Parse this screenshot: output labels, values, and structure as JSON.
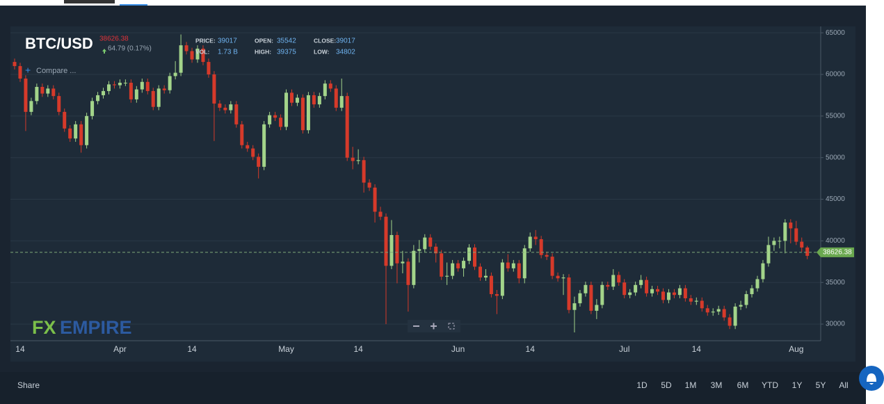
{
  "chart_data": {
    "type": "candlestick",
    "title": "BTC/USD",
    "last_price": 38626.38,
    "change": "64.79 (0.17%)",
    "compare": "Compare ...",
    "stats": [
      {
        "label": "PRICE:",
        "value": 39017
      },
      {
        "label": "OPEN:",
        "value": 35542
      },
      {
        "label": "CLOSE:",
        "value": 39017
      },
      {
        "label": "VOL:",
        "value": "1.73 B"
      },
      {
        "label": "HIGH:",
        "value": 39375
      },
      {
        "label": "LOW:",
        "value": 34802
      }
    ],
    "logo": [
      "FX",
      "EMPIRE"
    ],
    "share": "Share",
    "ranges": [
      "1D",
      "5D",
      "1M",
      "3M",
      "6M",
      "YTD",
      "1Y",
      "5Y",
      "All"
    ],
    "up_color": "#a3d48a",
    "down_color": "#d63a2a",
    "ylim": [
      28000,
      65600
    ],
    "yticks": [
      30000,
      35000,
      40000,
      45000,
      50000,
      55000,
      60000,
      65000
    ],
    "grid": true,
    "categories": [
      null,
      "14",
      null,
      null,
      null,
      null,
      null,
      null,
      null,
      null,
      null,
      null,
      null,
      null,
      null,
      null,
      null,
      null,
      null,
      "Apr",
      null,
      null,
      null,
      null,
      null,
      null,
      null,
      null,
      null,
      null,
      null,
      null,
      "14",
      null,
      null,
      null,
      null,
      null,
      null,
      null,
      null,
      null,
      null,
      null,
      null,
      null,
      null,
      null,
      null,
      "May",
      null,
      null,
      null,
      null,
      null,
      null,
      null,
      null,
      null,
      null,
      null,
      null,
      "14",
      null,
      null,
      null,
      null,
      null,
      null,
      null,
      null,
      null,
      null,
      null,
      null,
      null,
      null,
      null,
      null,
      null,
      "Jun",
      null,
      null,
      null,
      null,
      null,
      null,
      null,
      null,
      null,
      null,
      null,
      null,
      "14",
      null,
      null,
      null,
      null,
      null,
      null,
      null,
      null,
      null,
      null,
      null,
      null,
      null,
      null,
      null,
      null,
      "Jul",
      null,
      null,
      null,
      null,
      null,
      null,
      null,
      null,
      null,
      null,
      null,
      null,
      "14",
      null,
      null,
      null,
      null,
      null,
      null,
      null,
      null,
      null,
      null,
      null,
      null,
      null,
      null,
      null,
      null,
      null,
      "Aug",
      null,
      null
    ],
    "open": [
      61500,
      61000,
      59500,
      55500,
      56800,
      58500,
      57700,
      58300,
      57400,
      55500,
      53500,
      52300,
      54000,
      51500,
      55000,
      56800,
      57500,
      58000,
      58800,
      58700,
      59000,
      59000,
      57000,
      58200,
      59100,
      58000,
      56100,
      58300,
      58100,
      59800,
      60200,
      63500,
      62800,
      61800,
      63100,
      61500,
      60000,
      56500,
      56000,
      55700,
      56400,
      54000,
      51500,
      51100,
      50100,
      48900,
      54000,
      55100,
      54800,
      53700,
      57800,
      56600,
      57200,
      53300,
      57500,
      56400,
      57400,
      58900,
      58300,
      56000,
      57400,
      50000,
      49600,
      49700,
      47000,
      46400,
      43500,
      42900,
      37000,
      40700,
      37300,
      37500,
      34700,
      38800,
      39000,
      40400,
      39300,
      38500,
      35700,
      35800,
      37300,
      36700,
      37600,
      39200,
      36900,
      35600,
      35800,
      33600,
      33400,
      37400,
      36700,
      37300,
      35500,
      39100,
      40500,
      40200,
      38300,
      38100,
      35800,
      35500,
      35600,
      31700,
      32500,
      33700,
      34700,
      31600,
      32300,
      34700,
      34500,
      35900,
      35000,
      33500,
      33800,
      34700,
      35300,
      33700,
      34200,
      33900,
      32900,
      33800,
      33500,
      34300,
      33100,
      32700,
      32800,
      31900,
      31400,
      31500,
      31800,
      30800,
      29800,
      32100,
      32300,
      33600,
      34300,
      35400,
      37300,
      39500,
      40000,
      40000,
      42200,
      41500,
      39900,
      39200
    ],
    "high": [
      61900,
      61400,
      59900,
      57200,
      58900,
      58900,
      58700,
      58700,
      57800,
      55900,
      53900,
      54400,
      54400,
      55400,
      57200,
      57900,
      58400,
      59200,
      59200,
      59400,
      59400,
      59400,
      58600,
      59500,
      59500,
      58400,
      58700,
      58700,
      60200,
      61600,
      64800,
      63900,
      63200,
      63500,
      63500,
      61900,
      60400,
      56900,
      56400,
      56800,
      56800,
      54400,
      51900,
      51500,
      50500,
      54400,
      55500,
      55500,
      55200,
      58200,
      58200,
      57600,
      57600,
      57900,
      57900,
      57800,
      59300,
      59300,
      58700,
      59500,
      57800,
      51300,
      51000,
      50100,
      47400,
      46800,
      44100,
      43300,
      42500,
      41100,
      38800,
      37900,
      39500,
      40100,
      40800,
      40800,
      39700,
      38900,
      37400,
      37700,
      37700,
      38000,
      39600,
      39600,
      37300,
      36600,
      36200,
      34100,
      37800,
      38400,
      37700,
      37700,
      39500,
      41000,
      41300,
      40600,
      38700,
      38500,
      36200,
      36000,
      36000,
      33300,
      34100,
      35100,
      35100,
      33000,
      35100,
      35100,
      36600,
      36300,
      35400,
      34200,
      35100,
      35900,
      35700,
      34600,
      34600,
      34300,
      34200,
      34200,
      34700,
      34700,
      33500,
      33200,
      33200,
      32300,
      31900,
      32200,
      32200,
      31200,
      32500,
      32800,
      34000,
      34700,
      35800,
      37700,
      40500,
      40400,
      40500,
      42600,
      42600,
      42400,
      40400,
      39400
    ],
    "low": [
      60600,
      59100,
      53200,
      55100,
      56400,
      57300,
      57300,
      57000,
      55100,
      53100,
      51900,
      51900,
      50600,
      51100,
      54600,
      56400,
      57100,
      57600,
      58300,
      58300,
      58600,
      56600,
      56600,
      57800,
      57600,
      55700,
      55700,
      57700,
      57700,
      59400,
      59800,
      62400,
      61400,
      61400,
      61100,
      59600,
      52000,
      55600,
      55300,
      55300,
      53600,
      51100,
      50700,
      49700,
      47500,
      48500,
      53600,
      54400,
      53300,
      53300,
      56200,
      56200,
      52900,
      52900,
      56000,
      56000,
      57000,
      57900,
      55600,
      55600,
      49600,
      48600,
      49200,
      45800,
      46000,
      42200,
      42500,
      30000,
      36600,
      34900,
      36100,
      31500,
      34300,
      37400,
      38600,
      38900,
      37400,
      35300,
      34700,
      35400,
      36300,
      35700,
      37200,
      36500,
      35200,
      35200,
      33200,
      31200,
      33000,
      36300,
      36300,
      34900,
      34900,
      38700,
      39500,
      37900,
      37700,
      35400,
      35100,
      33500,
      31300,
      29000,
      32100,
      33300,
      31200,
      30600,
      31900,
      34100,
      34100,
      34600,
      33100,
      33100,
      33400,
      34300,
      33300,
      33300,
      33500,
      32500,
      32500,
      33100,
      33100,
      32700,
      32300,
      32300,
      31500,
      31000,
      31000,
      31100,
      30400,
      29400,
      29400,
      31700,
      31900,
      33200,
      33900,
      35000,
      36900,
      38800,
      39100,
      38500,
      39700,
      39500,
      38700,
      37800
    ],
    "close": [
      61000,
      59500,
      55500,
      56800,
      58500,
      57700,
      58300,
      57400,
      55500,
      53500,
      52300,
      54000,
      51500,
      55000,
      56800,
      57500,
      58000,
      58800,
      58700,
      59000,
      59000,
      57000,
      58200,
      59100,
      58000,
      56100,
      58300,
      58100,
      59800,
      60200,
      63500,
      62800,
      61800,
      63100,
      61500,
      60000,
      56500,
      56000,
      55700,
      56400,
      54000,
      51500,
      51100,
      50100,
      48900,
      54000,
      55100,
      54800,
      53700,
      57800,
      56600,
      57200,
      53300,
      57500,
      56400,
      57400,
      58900,
      58300,
      56000,
      57400,
      50000,
      49600,
      49700,
      47000,
      46400,
      43500,
      42900,
      37000,
      40700,
      37300,
      37500,
      34700,
      38800,
      39000,
      40400,
      39300,
      38500,
      35700,
      35800,
      37300,
      36700,
      37600,
      39200,
      36900,
      35600,
      35800,
      33600,
      33400,
      37400,
      36700,
      37300,
      35500,
      39100,
      40500,
      40200,
      38300,
      38100,
      35800,
      35500,
      35600,
      31700,
      32500,
      33700,
      34700,
      31600,
      32300,
      34700,
      34500,
      35900,
      35000,
      33500,
      33800,
      34700,
      35300,
      33700,
      34200,
      33900,
      32900,
      33800,
      33500,
      34300,
      33100,
      32700,
      32800,
      31900,
      31400,
      31500,
      31800,
      30800,
      29800,
      32100,
      32300,
      33600,
      34300,
      35400,
      37300,
      39500,
      40000,
      40000,
      42200,
      41500,
      39900,
      39200,
      38200
    ]
  }
}
